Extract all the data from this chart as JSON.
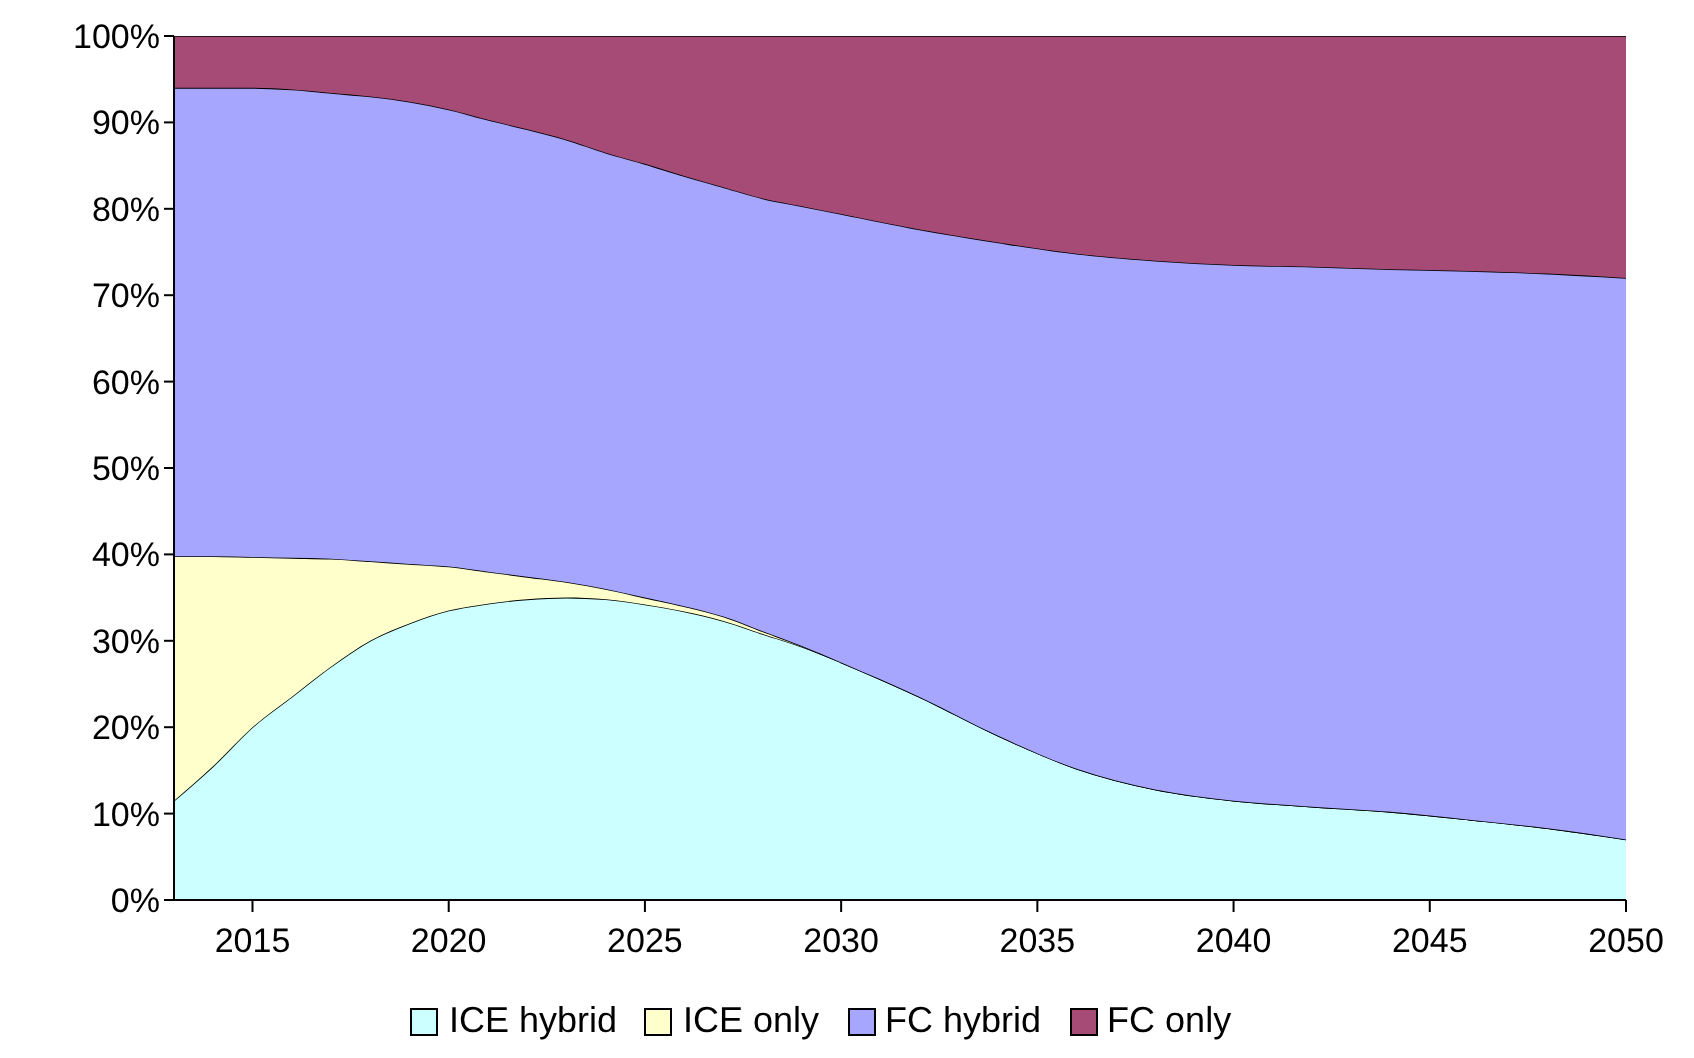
{
  "chart_data": {
    "type": "area",
    "stacked": true,
    "x": [
      2013,
      2014,
      2015,
      2016,
      2017,
      2018,
      2019,
      2020,
      2021,
      2022,
      2023,
      2024,
      2025,
      2026,
      2027,
      2028,
      2029,
      2030,
      2032,
      2034,
      2036,
      2038,
      2040,
      2042,
      2044,
      2046,
      2048,
      2050
    ],
    "series": [
      {
        "name": "ICE hybrid",
        "color": "#ccffff",
        "values": [
          11.5,
          15.5,
          20,
          23.5,
          27,
          30,
          32,
          33.5,
          34.3,
          34.8,
          35,
          34.8,
          34.2,
          33.4,
          32.3,
          30.8,
          29.3,
          27.5,
          23.5,
          19,
          15.2,
          12.8,
          11.5,
          10.8,
          10.2,
          9.3,
          8.3,
          7
        ]
      },
      {
        "name": "ICE only",
        "color": "#ffffcc",
        "values": [
          28.3,
          24.3,
          19.7,
          16.1,
          12.5,
          9.2,
          6.9,
          5.1,
          3.7,
          2.6,
          1.8,
          1.2,
          0.8,
          0.6,
          0.5,
          0.3,
          0.1,
          0,
          0,
          0,
          0,
          0,
          0,
          0,
          0,
          0,
          0,
          0
        ]
      },
      {
        "name": "FC hybrid",
        "color": "#a6a6ff",
        "values": [
          54.2,
          54.2,
          54.3,
          54.2,
          53.9,
          53.8,
          53.5,
          52.9,
          52.3,
          51.8,
          51.2,
          50.5,
          50.2,
          49.8,
          49.7,
          50.1,
          50.9,
          51.9,
          54.1,
          57.1,
          59.6,
          61.2,
          62,
          62.5,
          62.8,
          63.5,
          64.2,
          65
        ]
      },
      {
        "name": "FC only",
        "color": "#a64a76",
        "values": [
          6,
          6,
          6,
          6.2,
          6.6,
          7,
          7.6,
          8.5,
          9.7,
          10.8,
          12,
          13.5,
          14.8,
          16.2,
          17.5,
          18.8,
          19.7,
          20.6,
          22.4,
          23.9,
          25.2,
          26,
          26.5,
          26.7,
          27,
          27.2,
          27.5,
          28
        ]
      }
    ],
    "xlim": [
      2013,
      2050
    ],
    "xticks": [
      2015,
      2020,
      2025,
      2030,
      2035,
      2040,
      2045,
      2050
    ],
    "ylim": [
      0,
      100
    ],
    "yticks": [
      {
        "value": 0,
        "label": "0%"
      },
      {
        "value": 10,
        "label": "10%"
      },
      {
        "value": 20,
        "label": "20%"
      },
      {
        "value": 30,
        "label": "30%"
      },
      {
        "value": 40,
        "label": "40%"
      },
      {
        "value": 50,
        "label": "50%"
      },
      {
        "value": 60,
        "label": "60%"
      },
      {
        "value": 70,
        "label": "70%"
      },
      {
        "value": 80,
        "label": "80%"
      },
      {
        "value": 90,
        "label": "90%"
      },
      {
        "value": 100,
        "label": "100%"
      }
    ],
    "grid": false,
    "legend": "bottom"
  }
}
